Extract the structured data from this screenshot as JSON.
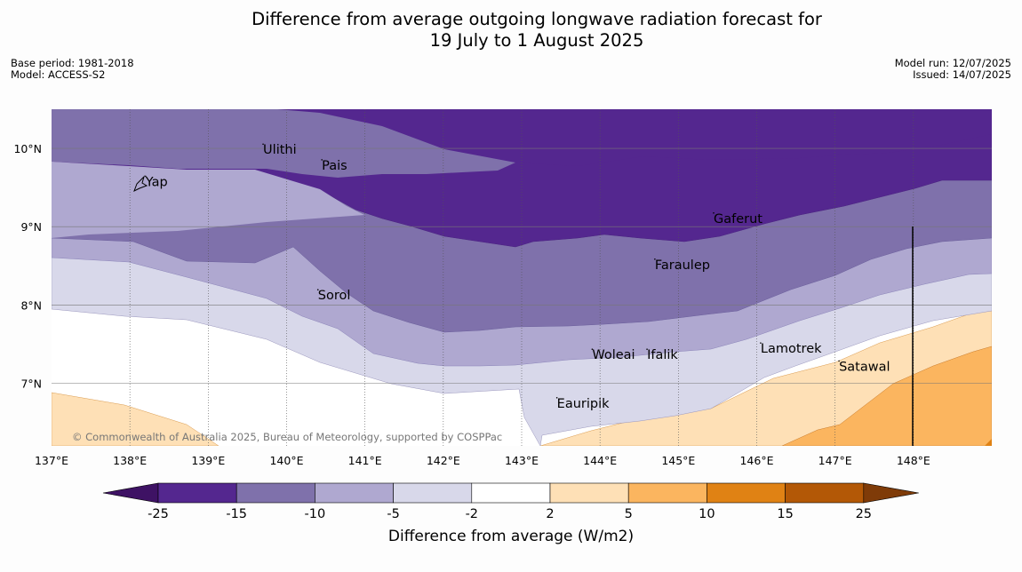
{
  "title": {
    "line1": "Difference from average outgoing longwave radiation forecast for",
    "line2": "19 July to 1 August 2025"
  },
  "meta_left": {
    "base_period": "Base period: 1981-2018",
    "model": "Model: ACCESS-S2"
  },
  "meta_right": {
    "model_run": "Model run: 12/07/2025",
    "issued": "Issued: 14/07/2025"
  },
  "copyright": "© Commonwealth of Australia 2025, Bureau of Meteorology, supported by COSPPac",
  "map": {
    "lon_range": [
      137.0,
      149.0
    ],
    "lat_range": [
      6.2,
      10.5
    ],
    "lon_ticks": [
      "137°E",
      "138°E",
      "139°E",
      "140°E",
      "141°E",
      "142°E",
      "143°E",
      "144°E",
      "145°E",
      "146°E",
      "147°E",
      "148°E"
    ],
    "lat_ticks": [
      "10°N",
      "9°N",
      "8°N",
      "7°N"
    ],
    "places": [
      {
        "name": "Yap",
        "lon": 138.2,
        "lat": 9.52
      },
      {
        "name": "Ulithi",
        "lon": 139.7,
        "lat": 9.93
      },
      {
        "name": "Pais",
        "lon": 140.45,
        "lat": 9.73
      },
      {
        "name": "Gaferut",
        "lon": 145.45,
        "lat": 9.05
      },
      {
        "name": "Faraulep",
        "lon": 144.7,
        "lat": 8.46
      },
      {
        "name": "Sorol",
        "lon": 140.4,
        "lat": 8.07
      },
      {
        "name": "Woleai",
        "lon": 143.9,
        "lat": 7.31
      },
      {
        "name": "Ifalik",
        "lon": 144.6,
        "lat": 7.31
      },
      {
        "name": "Lamotrek",
        "lon": 146.05,
        "lat": 7.39
      },
      {
        "name": "Satawal",
        "lon": 147.05,
        "lat": 7.16
      },
      {
        "name": "Eauripik",
        "lon": 143.45,
        "lat": 6.69
      }
    ]
  },
  "colorbar": {
    "title": "Difference from average (W/m2)",
    "tick_labels": [
      "-25",
      "-15",
      "-10",
      "-5",
      "-2",
      "2",
      "5",
      "10",
      "15",
      "25"
    ],
    "colors": [
      "#3e1264",
      "#54278f",
      "#7f71ab",
      "#afa8d0",
      "#d8d8ea",
      "#ffffff",
      "#fee0b6",
      "#fbb55f",
      "#e08214",
      "#b35806",
      "#7f3b08"
    ]
  }
}
